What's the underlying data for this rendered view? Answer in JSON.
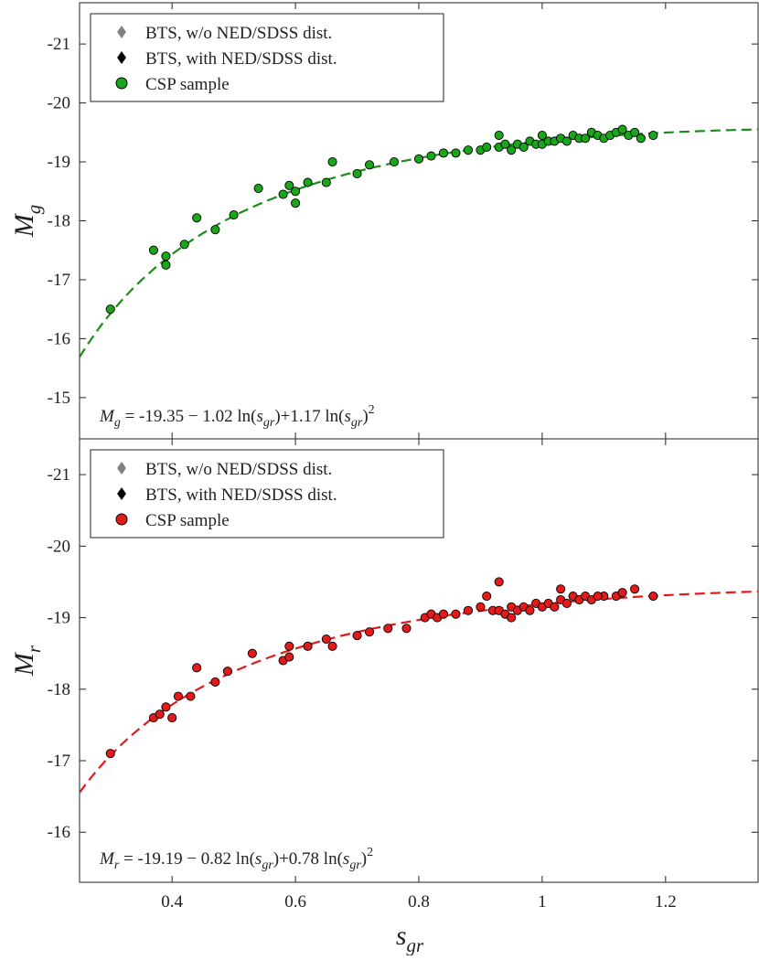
{
  "chart_data": [
    {
      "type": "scatter",
      "panel": "top",
      "ylabel": "M",
      "ylabel_sub": "g",
      "xlim": [
        0.25,
        1.35
      ],
      "ylim": [
        -14.3,
        -21.7
      ],
      "y_reversed": true,
      "yticks": [
        -21,
        -20,
        -19,
        -18,
        -17,
        -16,
        -15
      ],
      "ytick_labels": [
        "-21",
        "-20",
        "-19",
        "-18",
        "-17",
        "-16",
        "-15"
      ],
      "legend": {
        "placement": "top-left",
        "entries": [
          {
            "label": "BTS, w/o NED/SDSS dist.",
            "marker": "diamond",
            "color": "#808080"
          },
          {
            "label": "BTS, with NED/SDSS dist.",
            "marker": "diamond",
            "color": "#000000"
          },
          {
            "label": "CSP sample",
            "marker": "circle",
            "color": "#1aa61a"
          }
        ]
      },
      "fit": {
        "a": -19.35,
        "b": -1.02,
        "c": 1.17,
        "color": "#1a8c1a",
        "style": "dashed"
      },
      "formula": {
        "lhs": "M",
        "lhs_sub": "g",
        "text1": " = -19.35 − 1.02 ln(",
        "var": "s",
        "var_sub": "gr",
        "text2": ")+1.17 ln(",
        "text3": ")",
        "sup": "2"
      },
      "series": [
        {
          "name": "CSP sample",
          "marker": "circle",
          "color": "#1aa61a",
          "points": [
            [
              0.3,
              -16.5
            ],
            [
              0.39,
              -17.4
            ],
            [
              0.39,
              -17.25
            ],
            [
              0.37,
              -17.5
            ],
            [
              0.42,
              -17.6
            ],
            [
              0.44,
              -18.05
            ],
            [
              0.47,
              -17.85
            ],
            [
              0.5,
              -18.1
            ],
            [
              0.54,
              -18.55
            ],
            [
              0.58,
              -18.45
            ],
            [
              0.59,
              -18.6
            ],
            [
              0.6,
              -18.3
            ],
            [
              0.6,
              -18.5
            ],
            [
              0.62,
              -18.65
            ],
            [
              0.65,
              -18.65
            ],
            [
              0.66,
              -19.0
            ],
            [
              0.7,
              -18.8
            ],
            [
              0.72,
              -18.95
            ],
            [
              0.76,
              -19.0
            ],
            [
              0.8,
              -19.05
            ],
            [
              0.82,
              -19.1
            ],
            [
              0.84,
              -19.15
            ],
            [
              0.86,
              -19.15
            ],
            [
              0.88,
              -19.2
            ],
            [
              0.9,
              -19.2
            ],
            [
              0.91,
              -19.25
            ],
            [
              0.93,
              -19.25
            ],
            [
              0.94,
              -19.3
            ],
            [
              0.95,
              -19.2
            ],
            [
              0.96,
              -19.3
            ],
            [
              0.97,
              -19.25
            ],
            [
              0.98,
              -19.35
            ],
            [
              0.99,
              -19.3
            ],
            [
              1.0,
              -19.3
            ],
            [
              1.01,
              -19.35
            ],
            [
              1.02,
              -19.35
            ],
            [
              1.03,
              -19.4
            ],
            [
              1.04,
              -19.35
            ],
            [
              1.05,
              -19.45
            ],
            [
              1.06,
              -19.4
            ],
            [
              1.07,
              -19.4
            ],
            [
              1.08,
              -19.5
            ],
            [
              1.09,
              -19.45
            ],
            [
              1.1,
              -19.4
            ],
            [
              1.11,
              -19.45
            ],
            [
              1.12,
              -19.5
            ],
            [
              1.13,
              -19.55
            ],
            [
              1.14,
              -19.45
            ],
            [
              1.15,
              -19.5
            ],
            [
              1.16,
              -19.4
            ],
            [
              1.18,
              -19.45
            ],
            [
              0.93,
              -19.45
            ],
            [
              1.0,
              -19.45
            ]
          ]
        }
      ]
    },
    {
      "type": "scatter",
      "panel": "bottom",
      "ylabel": "M",
      "ylabel_sub": "r",
      "xlabel": "s",
      "xlabel_sub": "gr",
      "xlim": [
        0.25,
        1.35
      ],
      "ylim": [
        -15.3,
        -21.5
      ],
      "y_reversed": true,
      "xticks": [
        0.4,
        0.6,
        0.8,
        1.0,
        1.2
      ],
      "xtick_labels": [
        "0.4",
        "0.6",
        "0.8",
        "1",
        "1.2"
      ],
      "yticks": [
        -21,
        -20,
        -19,
        -18,
        -17,
        -16
      ],
      "ytick_labels": [
        "-21",
        "-20",
        "-19",
        "-18",
        "-17",
        "-16"
      ],
      "legend": {
        "placement": "top-left",
        "entries": [
          {
            "label": "BTS, w/o NED/SDSS dist.",
            "marker": "diamond",
            "color": "#808080"
          },
          {
            "label": "BTS, with NED/SDSS dist.",
            "marker": "diamond",
            "color": "#000000"
          },
          {
            "label": "CSP sample",
            "marker": "circle",
            "color": "#e31a1a"
          }
        ]
      },
      "fit": {
        "a": -19.19,
        "b": -0.82,
        "c": 0.78,
        "color": "#e31a1a",
        "style": "dashed"
      },
      "formula": {
        "lhs": "M",
        "lhs_sub": "r",
        "text1": " = -19.19 − 0.82 ln(",
        "var": "s",
        "var_sub": "gr",
        "text2": ")+0.78 ln(",
        "text3": ")",
        "sup": "2"
      },
      "series": [
        {
          "name": "CSP sample",
          "marker": "circle",
          "color": "#e31a1a",
          "points": [
            [
              0.3,
              -17.1
            ],
            [
              0.37,
              -17.6
            ],
            [
              0.38,
              -17.65
            ],
            [
              0.39,
              -17.75
            ],
            [
              0.4,
              -17.6
            ],
            [
              0.41,
              -17.9
            ],
            [
              0.43,
              -17.9
            ],
            [
              0.44,
              -18.3
            ],
            [
              0.47,
              -18.1
            ],
            [
              0.49,
              -18.25
            ],
            [
              0.53,
              -18.5
            ],
            [
              0.58,
              -18.4
            ],
            [
              0.59,
              -18.45
            ],
            [
              0.59,
              -18.6
            ],
            [
              0.62,
              -18.6
            ],
            [
              0.65,
              -18.7
            ],
            [
              0.66,
              -18.6
            ],
            [
              0.7,
              -18.75
            ],
            [
              0.72,
              -18.8
            ],
            [
              0.75,
              -18.85
            ],
            [
              0.78,
              -18.85
            ],
            [
              0.81,
              -19.0
            ],
            [
              0.82,
              -19.05
            ],
            [
              0.83,
              -19.0
            ],
            [
              0.84,
              -19.05
            ],
            [
              0.86,
              -19.05
            ],
            [
              0.88,
              -19.1
            ],
            [
              0.9,
              -19.15
            ],
            [
              0.91,
              -19.3
            ],
            [
              0.92,
              -19.1
            ],
            [
              0.93,
              -19.1
            ],
            [
              0.94,
              -19.05
            ],
            [
              0.95,
              -19.15
            ],
            [
              0.96,
              -19.1
            ],
            [
              0.97,
              -19.15
            ],
            [
              0.98,
              -19.1
            ],
            [
              0.99,
              -19.2
            ],
            [
              1.0,
              -19.15
            ],
            [
              1.01,
              -19.2
            ],
            [
              1.02,
              -19.15
            ],
            [
              1.03,
              -19.25
            ],
            [
              1.04,
              -19.2
            ],
            [
              1.05,
              -19.3
            ],
            [
              1.06,
              -19.25
            ],
            [
              1.07,
              -19.3
            ],
            [
              1.08,
              -19.25
            ],
            [
              1.1,
              -19.3
            ],
            [
              1.12,
              -19.3
            ],
            [
              1.13,
              -19.35
            ],
            [
              1.15,
              -19.4
            ],
            [
              1.18,
              -19.3
            ],
            [
              0.93,
              -19.5
            ],
            [
              1.03,
              -19.4
            ],
            [
              1.09,
              -19.3
            ],
            [
              0.95,
              -19.0
            ]
          ]
        }
      ]
    }
  ]
}
